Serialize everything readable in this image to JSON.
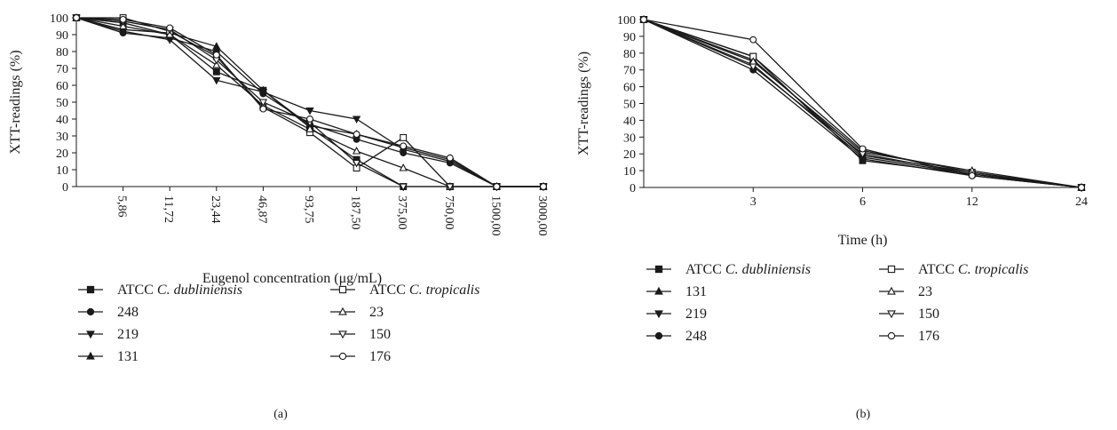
{
  "chart_data": [
    {
      "type": "line",
      "panel_label": "(a)",
      "xlabel": "Eugenol concentration (μg/mL)",
      "ylabel": "XTT-readings (%)",
      "ylim": [
        0,
        100
      ],
      "ytick_step": 10,
      "grid": false,
      "legend_position": "bottom-left",
      "x_tick_rotation": "vertical",
      "categories": [
        "",
        "5,86",
        "11,72",
        "23,44",
        "46,87",
        "93,75",
        "187,50",
        "375,00",
        "750,00",
        "1500,00",
        "3000,00"
      ],
      "series": [
        {
          "name": "ATCC C. dubliniensis",
          "name_prefix": "ATCC ",
          "name_italic": "C. dubliniensis",
          "marker": "square-filled",
          "values": [
            100,
            97,
            90,
            68,
            57,
            35,
            16,
            0,
            0,
            0,
            0
          ]
        },
        {
          "name": "248",
          "marker": "circle-filled",
          "values": [
            100,
            91,
            88,
            80,
            55,
            37,
            28,
            20,
            14,
            0,
            0
          ]
        },
        {
          "name": "219",
          "marker": "triangle-down-filled",
          "values": [
            100,
            92,
            87,
            63,
            56,
            45,
            40,
            22,
            15,
            0,
            0
          ]
        },
        {
          "name": "131",
          "marker": "triangle-up-filled",
          "values": [
            100,
            93,
            91,
            83,
            57,
            36,
            31,
            23,
            16,
            0,
            0
          ]
        },
        {
          "name": "ATCC C. tropicalis",
          "name_prefix": "ATCC ",
          "name_italic": "C. tropicalis",
          "marker": "square-open",
          "values": [
            100,
            100,
            92,
            77,
            47,
            32,
            11,
            29,
            0,
            0,
            0
          ]
        },
        {
          "name": "23",
          "marker": "triangle-up-open",
          "values": [
            100,
            95,
            90,
            72,
            48,
            34,
            21,
            11,
            0,
            0,
            0
          ]
        },
        {
          "name": "150",
          "marker": "triangle-down-open",
          "values": [
            100,
            98,
            93,
            75,
            50,
            38,
            14,
            0,
            0,
            0,
            0
          ]
        },
        {
          "name": "176",
          "marker": "circle-open",
          "values": [
            100,
            99,
            94,
            78,
            46,
            40,
            31,
            24,
            17,
            0,
            0
          ]
        }
      ],
      "legend_order": [
        0,
        4,
        1,
        5,
        2,
        6,
        3,
        7
      ]
    },
    {
      "type": "line",
      "panel_label": "(b)",
      "xlabel": "Time (h)",
      "ylabel": "XTT-readings (%)",
      "ylim": [
        0,
        100
      ],
      "ytick_step": 10,
      "grid": false,
      "legend_position": "bottom-left",
      "x_tick_rotation": "horizontal",
      "categories": [
        "",
        "3",
        "6",
        "12",
        "24"
      ],
      "series": [
        {
          "name": "ATCC C. dubliniensis",
          "name_prefix": "ATCC ",
          "name_italic": "C. dubliniensis",
          "marker": "square-filled",
          "values": [
            100,
            78,
            16,
            8,
            0
          ]
        },
        {
          "name": "131",
          "marker": "triangle-up-filled",
          "values": [
            100,
            76,
            19,
            9,
            0
          ]
        },
        {
          "name": "219",
          "marker": "triangle-down-filled",
          "values": [
            100,
            73,
            18,
            8,
            0
          ]
        },
        {
          "name": "248",
          "marker": "circle-filled",
          "values": [
            100,
            70,
            17,
            7,
            0
          ]
        },
        {
          "name": "ATCC C. tropicalis",
          "name_prefix": "ATCC ",
          "name_italic": "C. tropicalis",
          "marker": "square-open",
          "values": [
            100,
            78,
            22,
            9,
            0
          ]
        },
        {
          "name": "23",
          "marker": "triangle-up-open",
          "values": [
            100,
            75,
            21,
            10,
            0
          ]
        },
        {
          "name": "150",
          "marker": "triangle-down-open",
          "values": [
            100,
            72,
            20,
            8,
            0
          ]
        },
        {
          "name": "176",
          "marker": "circle-open",
          "values": [
            100,
            88,
            23,
            7,
            0
          ]
        }
      ],
      "legend_order": [
        0,
        4,
        1,
        5,
        2,
        6,
        3,
        7
      ]
    }
  ]
}
